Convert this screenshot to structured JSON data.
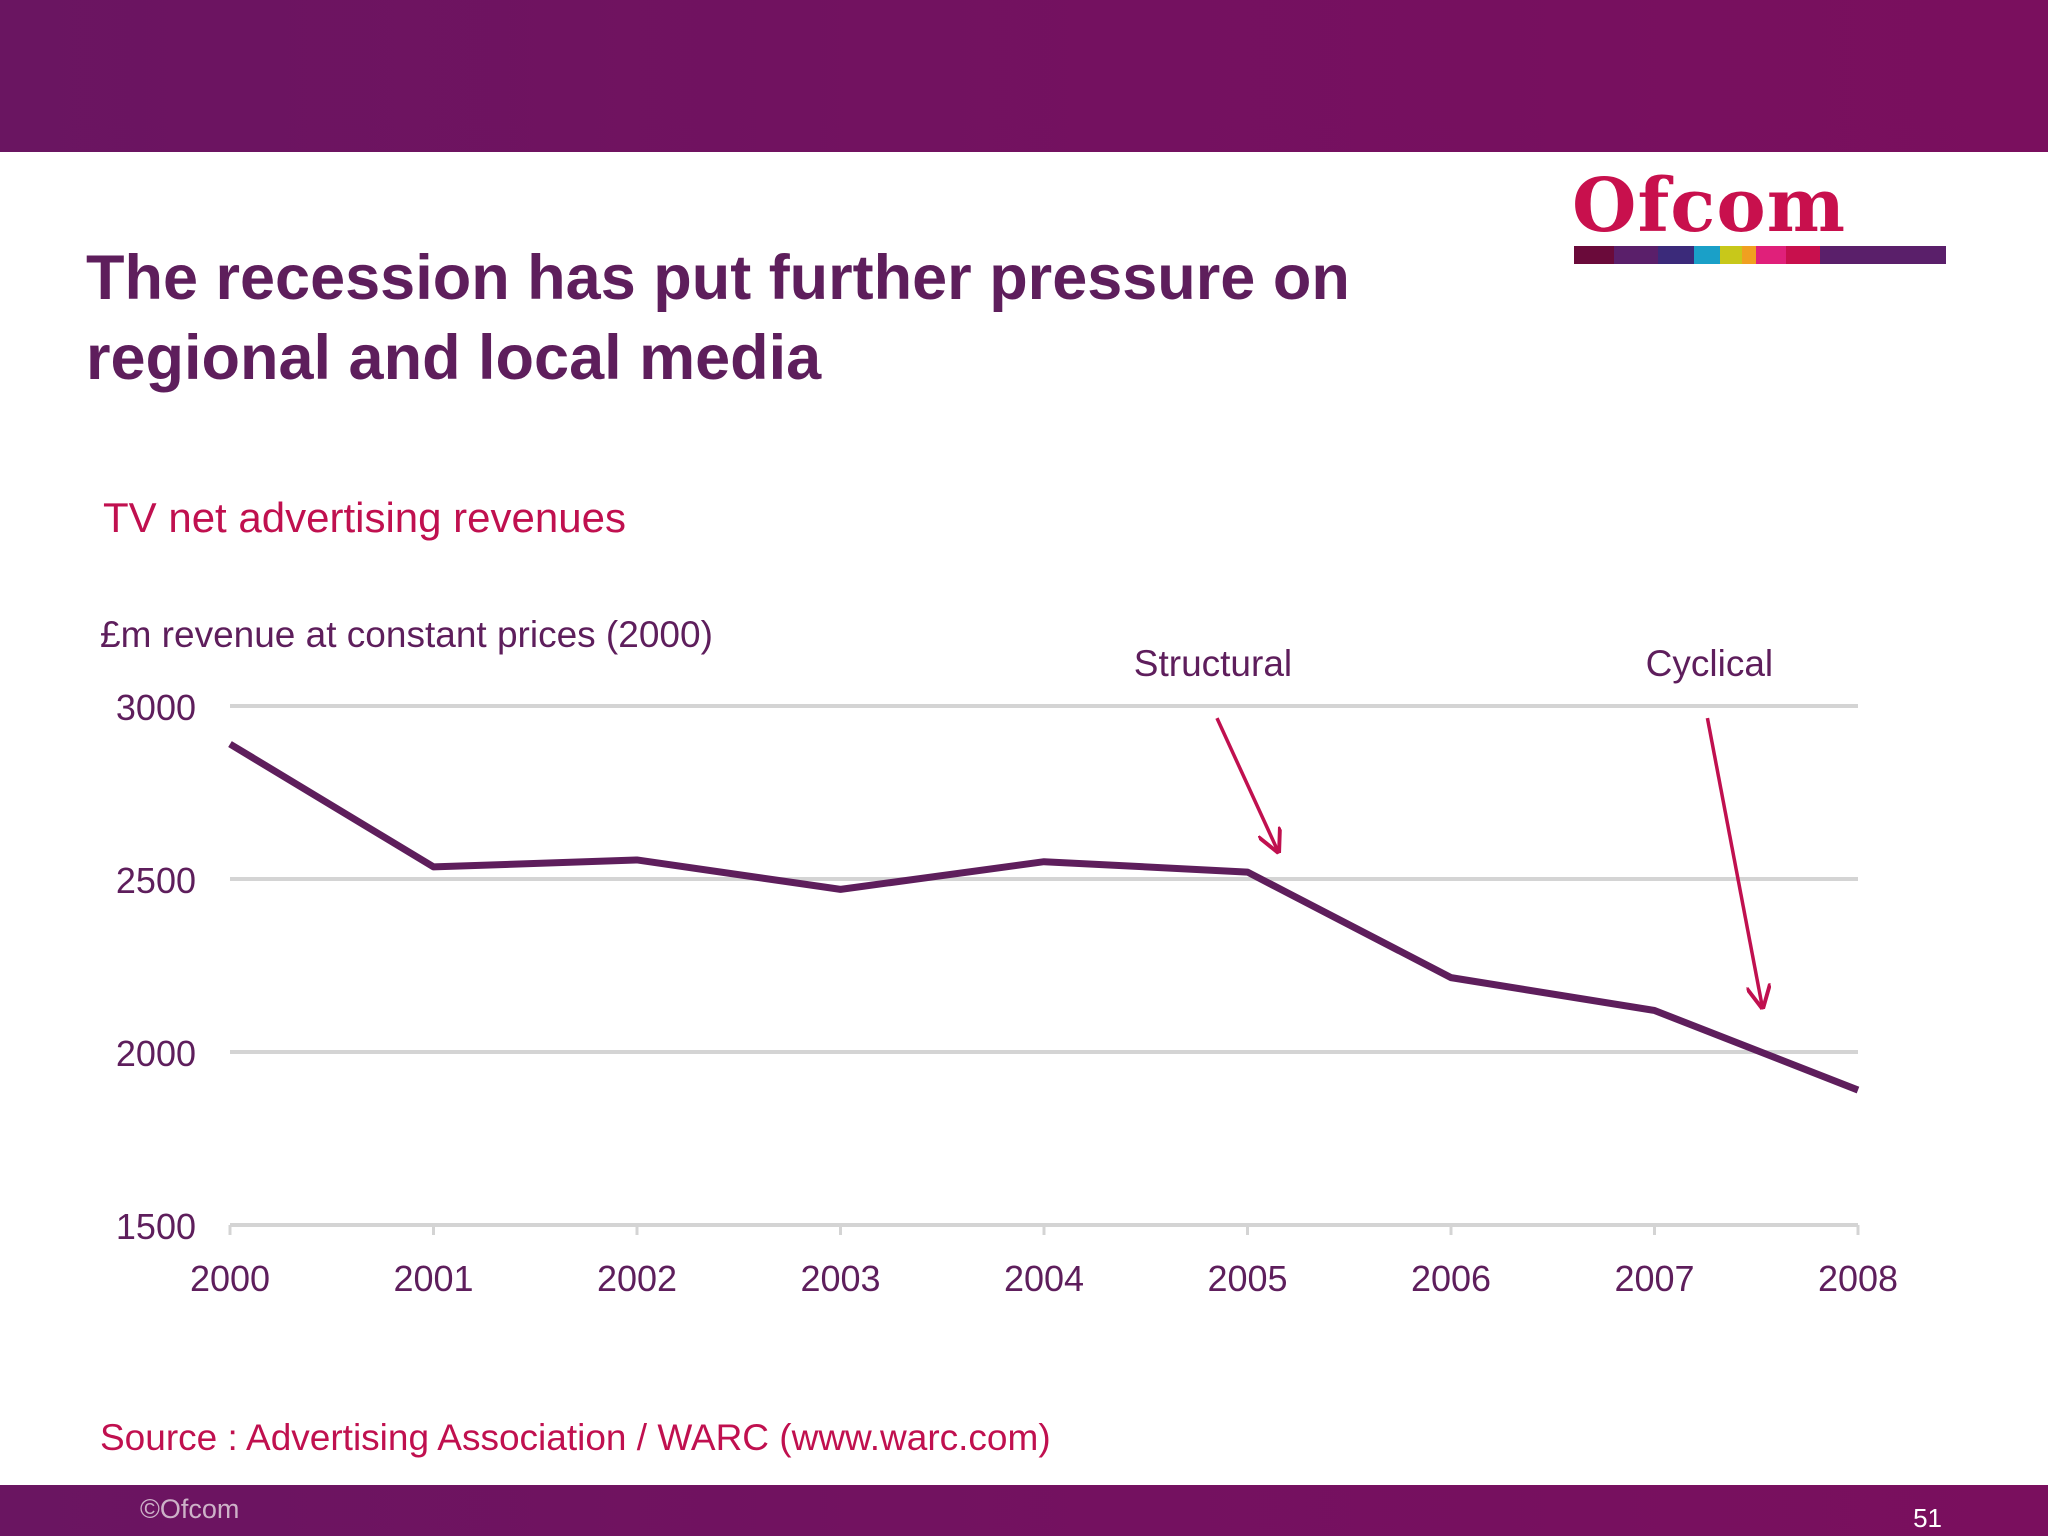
{
  "slide": {
    "title": "The recession has put further pressure on regional and local media",
    "source": "Source : Advertising Association / WARC (www.warc.com)",
    "copyright": "©Ofcom",
    "page_number": "51"
  },
  "logo": {
    "text": "Ofcom",
    "color": "#c8104d",
    "stripe_colors": [
      "#6a0a3a",
      "#5a1f6a",
      "#3b2a7a",
      "#1aa0c8",
      "#c8c81a",
      "#f0a020",
      "#e0207a",
      "#c8104d",
      "#5a1f6a",
      "#5a1f6a"
    ]
  },
  "colors": {
    "brand_purple": "#741160",
    "accent_red": "#c0104f",
    "series_line": "#5e1e5c",
    "gridline": "#d4d4d4"
  },
  "chart_data": {
    "type": "line",
    "title": "TV net advertising revenues",
    "ylabel": "£m  revenue at constant prices (2000)",
    "xlabel": "",
    "x": [
      "2000",
      "2001",
      "2002",
      "2003",
      "2004",
      "2005",
      "2006",
      "2007",
      "2008"
    ],
    "series": [
      {
        "name": "TV net advertising revenues",
        "values": [
          2890,
          2535,
          2555,
          2470,
          2550,
          2520,
          2215,
          2120,
          1890
        ]
      }
    ],
    "ylim": [
      1500,
      3000
    ],
    "yticks": [
      3000,
      2500,
      2000,
      1500
    ],
    "grid": true,
    "annotations": [
      {
        "text": "Structural",
        "x_start": 2004.85,
        "y_start": 2965,
        "x_end": 2005.15,
        "y_end": 2580
      },
      {
        "text": "Cyclical",
        "x_start": 2007.26,
        "y_start": 2965,
        "x_end": 2007.53,
        "y_end": 2130
      }
    ]
  }
}
